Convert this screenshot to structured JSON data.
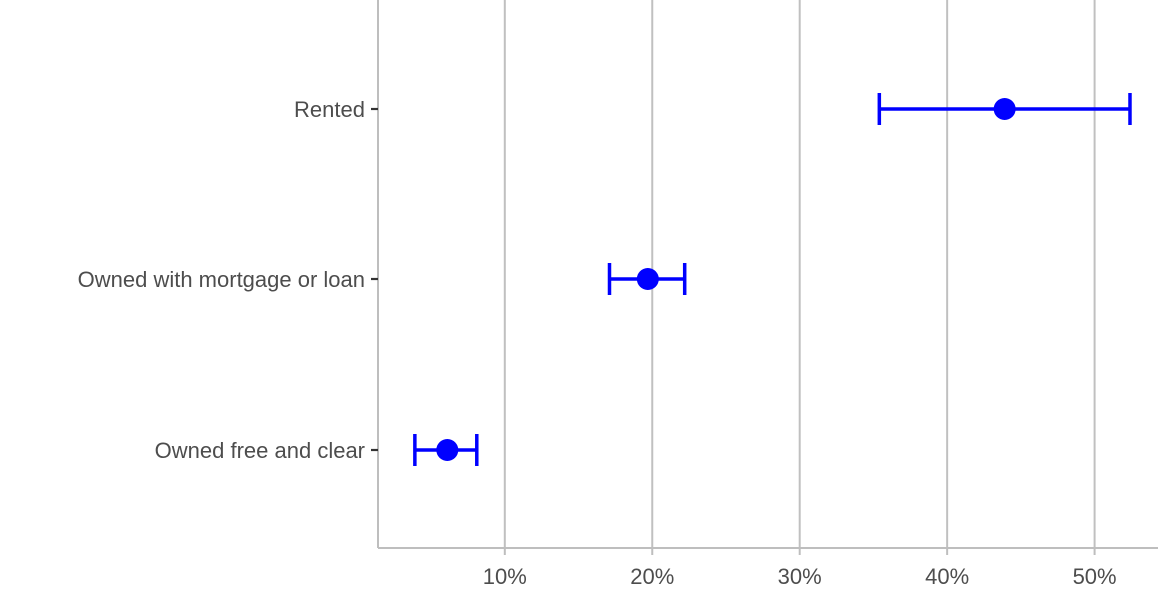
{
  "chart_data": {
    "type": "point-errorbar",
    "orientation": "horizontal",
    "title": "",
    "xlabel": "",
    "ylabel": "",
    "categories": [
      "Rented",
      "Owned with mortgage or loan",
      "Owned free and clear"
    ],
    "points": [
      {
        "category": "Rented",
        "estimate": 43.9,
        "lower": 35.4,
        "upper": 52.4
      },
      {
        "category": "Owned with mortgage or loan",
        "estimate": 19.7,
        "lower": 17.1,
        "upper": 22.2
      },
      {
        "category": "Owned free and clear",
        "estimate": 6.1,
        "lower": 3.9,
        "upper": 8.1
      }
    ],
    "x_ticks": [
      10,
      20,
      30,
      40,
      50
    ],
    "x_tick_labels": [
      "10%",
      "20%",
      "30%",
      "40%",
      "50%"
    ],
    "xlim": [
      1.4,
      54.3
    ],
    "grid": "vertical major lines",
    "colors": {
      "marker": "#0000ff",
      "grid": "#c0c0c0",
      "axis": "#bebebe",
      "tick_label": "#4d4d4d",
      "category_tick": "#333333"
    }
  }
}
